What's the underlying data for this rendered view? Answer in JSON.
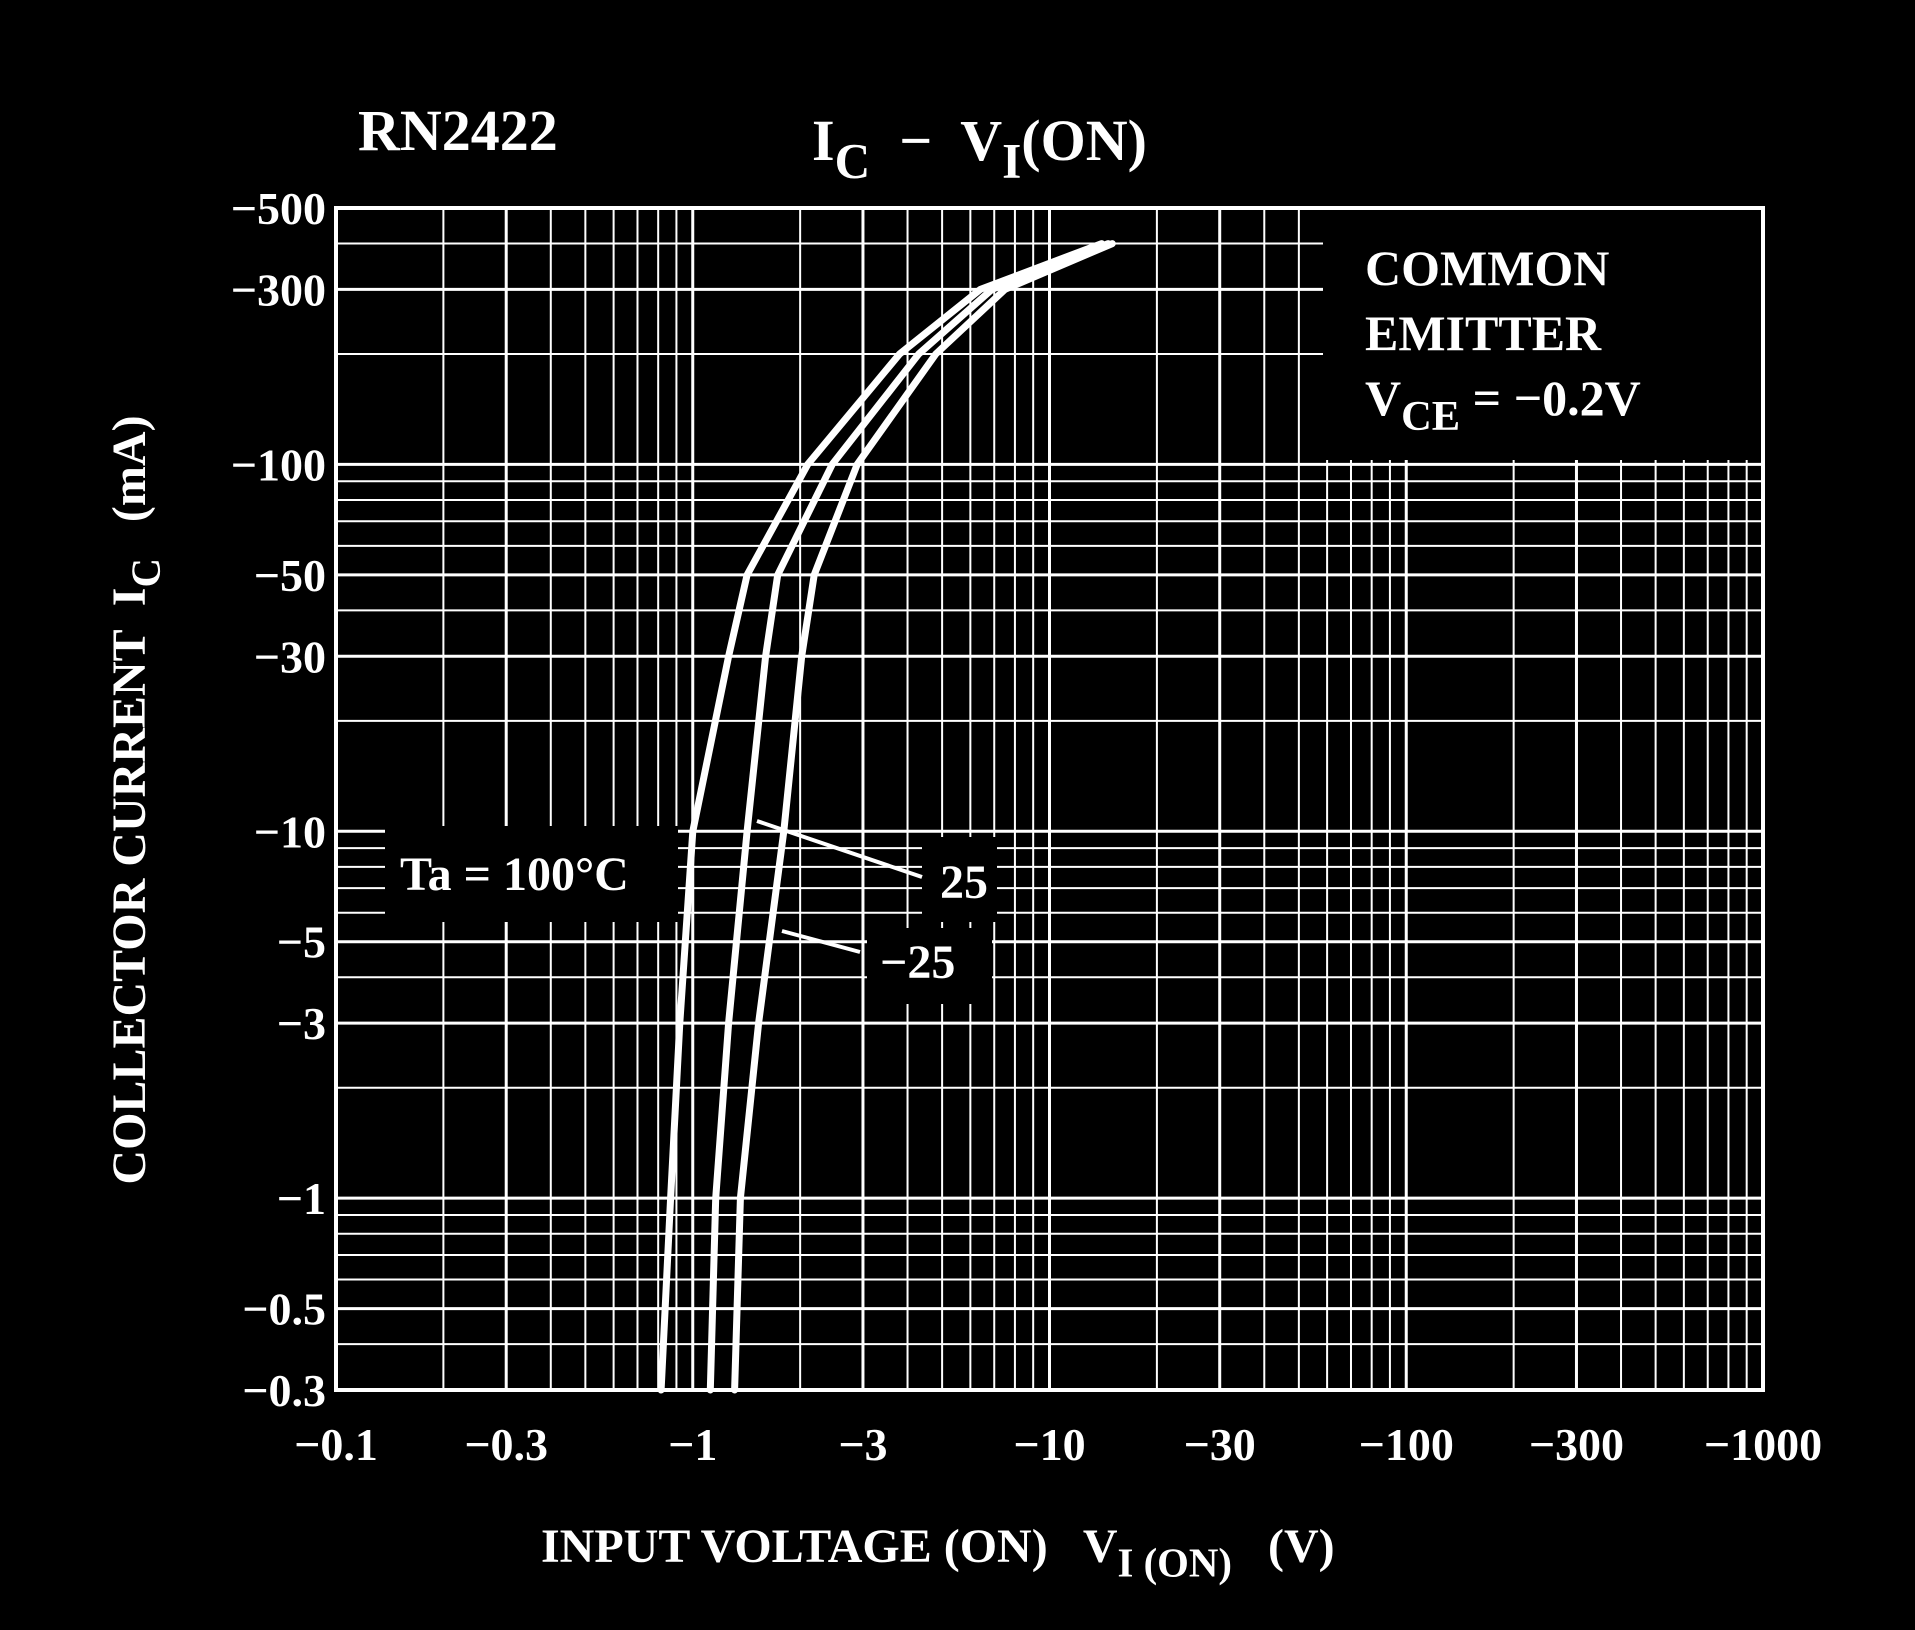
{
  "chart_data": {
    "type": "line",
    "title": "RN2422",
    "subtitle": [
      "I",
      "C",
      "  −  V",
      "I",
      "(ON)"
    ],
    "xlabel": [
      "INPUT VOLTAGE (ON)   V",
      "I (ON)",
      "   (V)"
    ],
    "ylabel": [
      "COLLECTOR CURRENT  I",
      "C",
      "   (mA)"
    ],
    "note": {
      "lines": [
        "COMMON",
        "EMITTER"
      ],
      "condition": [
        "V",
        "CE",
        " = −0.2V"
      ]
    },
    "xscale": "log",
    "yscale": "log",
    "grid": true,
    "background": "#000000",
    "foreground": "#ffffff",
    "xlim": [
      -0.1,
      -1000
    ],
    "ylim": [
      -0.3,
      -500
    ],
    "xticks": [
      {
        "value": -0.1,
        "label": "−0.1"
      },
      {
        "value": -0.3,
        "label": "−0.3"
      },
      {
        "value": -1,
        "label": "−1"
      },
      {
        "value": -3,
        "label": "−3"
      },
      {
        "value": -10,
        "label": "−10"
      },
      {
        "value": -30,
        "label": "−30"
      },
      {
        "value": -100,
        "label": "−100"
      },
      {
        "value": -300,
        "label": "−300"
      },
      {
        "value": -1000,
        "label": "−1000"
      }
    ],
    "yticks": [
      {
        "value": -500,
        "label": "−500"
      },
      {
        "value": -300,
        "label": "−300"
      },
      {
        "value": -100,
        "label": "−100"
      },
      {
        "value": -50,
        "label": "−50"
      },
      {
        "value": -30,
        "label": "−30"
      },
      {
        "value": -10,
        "label": "−10"
      },
      {
        "value": -5,
        "label": "−5"
      },
      {
        "value": -3,
        "label": "−3"
      },
      {
        "value": -1,
        "label": "−1"
      },
      {
        "value": -0.5,
        "label": "−0.5"
      },
      {
        "value": -0.3,
        "label": "−0.3"
      }
    ],
    "x_minor_ticks": [
      -0.2,
      -0.4,
      -0.5,
      -0.6,
      -0.7,
      -0.8,
      -0.9,
      -2,
      -4,
      -5,
      -6,
      -7,
      -8,
      -9,
      -20,
      -40,
      -50,
      -60,
      -70,
      -80,
      -90,
      -200,
      -400,
      -500,
      -600,
      -700,
      -800,
      -900
    ],
    "y_minor_ticks": [
      -0.4,
      -0.6,
      -0.7,
      -0.8,
      -0.9,
      -2,
      -4,
      -6,
      -7,
      -8,
      -9,
      -20,
      -40,
      -60,
      -70,
      -80,
      -90,
      -200,
      -400
    ],
    "series": [
      {
        "name": "Ta = 100°C",
        "color": "#ffffff",
        "x": [
          -0.815,
          -0.867,
          -0.92,
          -1.0,
          -1.26,
          -1.42,
          -2.1,
          -3.8,
          -6.4,
          -14
        ],
        "values": [
          -0.3,
          -1,
          -3,
          -10,
          -30,
          -50,
          -100,
          -200,
          -300,
          -400
        ]
      },
      {
        "name": "25",
        "color": "#ffffff",
        "x": [
          -1.12,
          -1.16,
          -1.26,
          -1.42,
          -1.6,
          -1.73,
          -2.46,
          -4.3,
          -6.9,
          -14.6
        ],
        "values": [
          -0.3,
          -1,
          -3,
          -10,
          -30,
          -50,
          -100,
          -200,
          -300,
          -400
        ]
      },
      {
        "name": "−25",
        "color": "#ffffff",
        "x": [
          -1.31,
          -1.36,
          -1.53,
          -1.8,
          -2.02,
          -2.19,
          -2.89,
          -4.8,
          -7.5,
          -15
        ],
        "values": [
          -0.3,
          -1,
          -3,
          -10,
          -30,
          -50,
          -100,
          -200,
          -300,
          -400
        ]
      }
    ]
  }
}
